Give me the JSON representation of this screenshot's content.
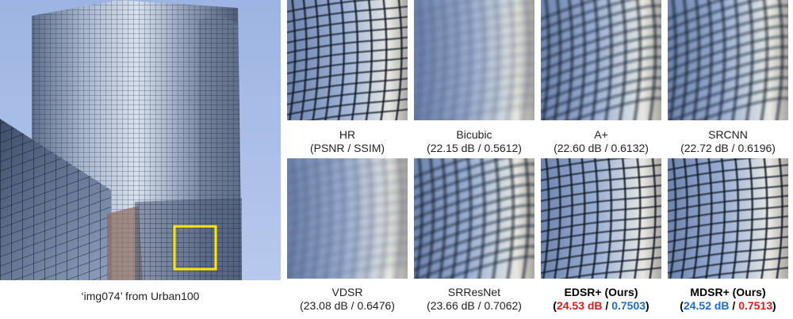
{
  "main": {
    "caption": "‘img074’ from Urban100",
    "box_color": "#ffe600"
  },
  "crops": [
    {
      "name": "HR",
      "metric": "(PSNR / SSIM)",
      "style": "sharp"
    },
    {
      "name": "Bicubic",
      "metric": "(22.15 dB / 0.5612)",
      "style": "blur"
    },
    {
      "name": "A+",
      "metric": "(22.60 dB / 0.6132)",
      "style": "wave"
    },
    {
      "name": "SRCNN",
      "metric": "(22.72 dB / 0.6196)",
      "style": "wave"
    },
    {
      "name": "VDSR",
      "metric": "(23.08 dB / 0.6476)",
      "style": "blur"
    },
    {
      "name": "SRResNet",
      "metric": "(23.66 dB / 0.7062)",
      "style": "wave"
    },
    {
      "name": "EDSR+ (Ours)",
      "psnr": "24.53 dB",
      "ssim": "0.7503",
      "psnr_color": "red",
      "ssim_color": "blue",
      "style": "grid"
    },
    {
      "name": "MDSR+ (Ours)",
      "psnr": "24.52 dB",
      "ssim": "0.7513",
      "psnr_color": "blue",
      "ssim_color": "red",
      "style": "grid"
    }
  ],
  "colors": {
    "best": "#e21b1b",
    "second": "#1a6fc2"
  }
}
